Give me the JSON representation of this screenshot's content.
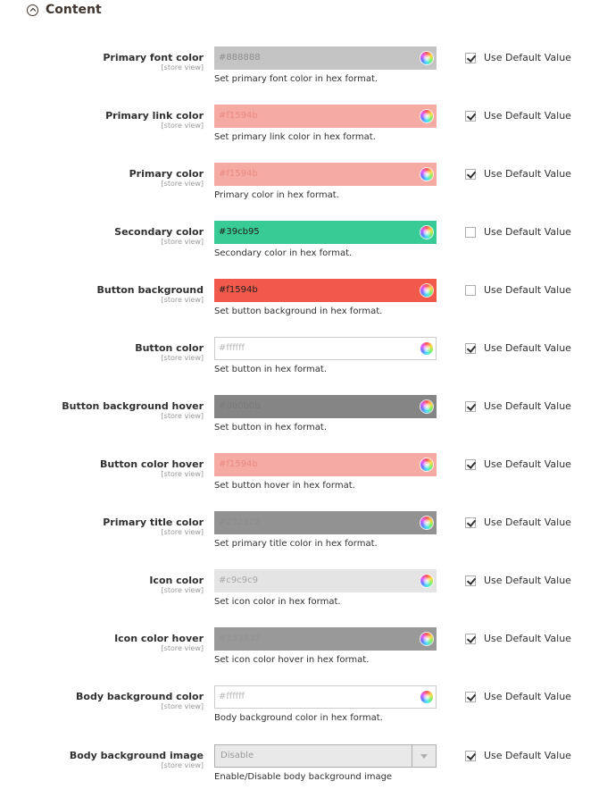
{
  "section": {
    "title": "Content"
  },
  "default_label": "Use Default Value",
  "scope": "[store view]",
  "rows": [
    {
      "label": "Primary font color",
      "value": "#888888",
      "note": "Set primary font color in hex format.",
      "bg": "#c4c4c4",
      "text_color": "#8f8f8f",
      "use_default": true
    },
    {
      "label": "Primary link color",
      "value": "#f1594b",
      "note": "Set primary link color in hex format.",
      "bg": "#f6aaa4",
      "text_color": "#e88b82",
      "use_default": true
    },
    {
      "label": "Primary color",
      "value": "#f1594b",
      "note": "Primary color in hex format.",
      "bg": "#f6aaa4",
      "text_color": "#e88b82",
      "use_default": true
    },
    {
      "label": "Secondary color",
      "value": "#39cb95",
      "note": "Secondary color in hex format.",
      "bg": "#39cb95",
      "text_color": "#1f1f1f",
      "use_default": false
    },
    {
      "label": "Button background",
      "value": "#f1594b",
      "note": "Set button background in hex format.",
      "bg": "#f1594b",
      "text_color": "#1f1f1f",
      "use_default": false
    },
    {
      "label": "Button color",
      "value": "#ffffff",
      "note": "Set button in hex format.",
      "bg": "#ffffff",
      "text_color": "#b8b8b8",
      "use_default": true
    },
    {
      "label": "Button background hover",
      "value": "#0b0b0b",
      "note": "Set button in hex format.",
      "bg": "#858585",
      "text_color": "#7a7a7a",
      "use_default": true
    },
    {
      "label": "Button color hover",
      "value": "#f1594b",
      "note": "Set button hover in hex format.",
      "bg": "#f6aaa4",
      "text_color": "#e88b82",
      "use_default": true
    },
    {
      "label": "Primary title color",
      "value": "#222222",
      "note": "Set primary title color in hex format.",
      "bg": "#929292",
      "text_color": "#8c8c8c",
      "use_default": true
    },
    {
      "label": "Icon color",
      "value": "#c9c9c9",
      "note": "Set icon color in hex format.",
      "bg": "#e4e4e4",
      "text_color": "#a8a8a8",
      "use_default": true
    },
    {
      "label": "Icon color hover",
      "value": "#333333",
      "note": "Set icon color hover in hex format.",
      "bg": "#999999",
      "text_color": "#929292",
      "use_default": true
    },
    {
      "label": "Body background color",
      "value": "#ffffff",
      "note": "Body background color in hex format.",
      "bg": "#ffffff",
      "text_color": "#b8b8b8",
      "use_default": true
    }
  ],
  "select_row": {
    "label": "Body background image",
    "value": "Disable",
    "note": "Enable/Disable body background image",
    "use_default": true
  }
}
